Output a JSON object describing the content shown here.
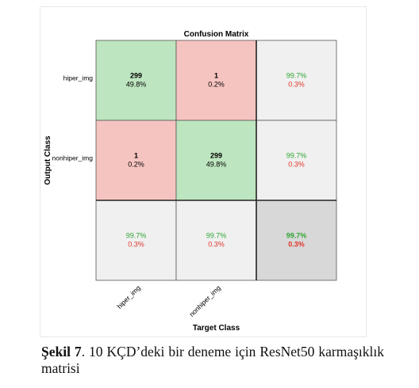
{
  "chart_data": {
    "type": "heatmap",
    "title": "Confusion Matrix",
    "xlabel": "Target Class",
    "ylabel": "Output Class",
    "classes": [
      "hiper_img",
      "nonhiper_img"
    ],
    "cells": [
      [
        {
          "count": "299",
          "percent": "49.8%"
        },
        {
          "count": "1",
          "percent": "0.2%"
        }
      ],
      [
        {
          "count": "1",
          "percent": "0.2%"
        },
        {
          "count": "299",
          "percent": "49.8%"
        }
      ]
    ],
    "row_summary": [
      {
        "correct": "99.7%",
        "wrong": "0.3%"
      },
      {
        "correct": "99.7%",
        "wrong": "0.3%"
      }
    ],
    "col_summary": [
      {
        "correct": "99.7%",
        "wrong": "0.3%"
      },
      {
        "correct": "99.7%",
        "wrong": "0.3%"
      }
    ],
    "overall": {
      "correct": "99.7%",
      "wrong": "0.3%"
    },
    "colors": {
      "correct_cell": "#bde5bf",
      "wrong_cell": "#f6c4c0",
      "summary_cell": "#f0f0f0",
      "overall_cell": "#d8d8d8",
      "correct_text": "#2ea632",
      "wrong_text": "#e0352b"
    }
  },
  "caption": {
    "label": "Şekil 7",
    "text": ". 10 KÇD’deki bir deneme için ResNet50 karmaşıklık matrisi"
  }
}
